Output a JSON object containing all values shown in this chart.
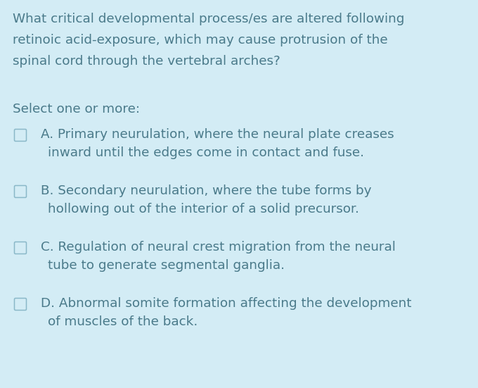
{
  "background_color": "#d3ecf5",
  "text_color": "#4a7a8a",
  "question_lines": [
    "What critical developmental process/es are altered following",
    "retinoic acid-exposure, which may cause protrusion of the",
    "spinal cord through the vertebral arches?"
  ],
  "prompt": "Select one or more:",
  "options": [
    {
      "line1": "A. Primary neurulation, where the neural plate creases",
      "line2": "inward until the edges come in contact and fuse."
    },
    {
      "line1": "B. Secondary neurulation, where the tube forms by",
      "line2": "hollowing out of the interior of a solid precursor."
    },
    {
      "line1": "C. Regulation of neural crest migration from the neural",
      "line2": "tube to generate segmental ganglia."
    },
    {
      "line1": "D. Abnormal somite formation affecting the development",
      "line2": "of muscles of the back."
    }
  ],
  "figwidth": 6.8,
  "figheight": 5.51,
  "dpi": 100
}
